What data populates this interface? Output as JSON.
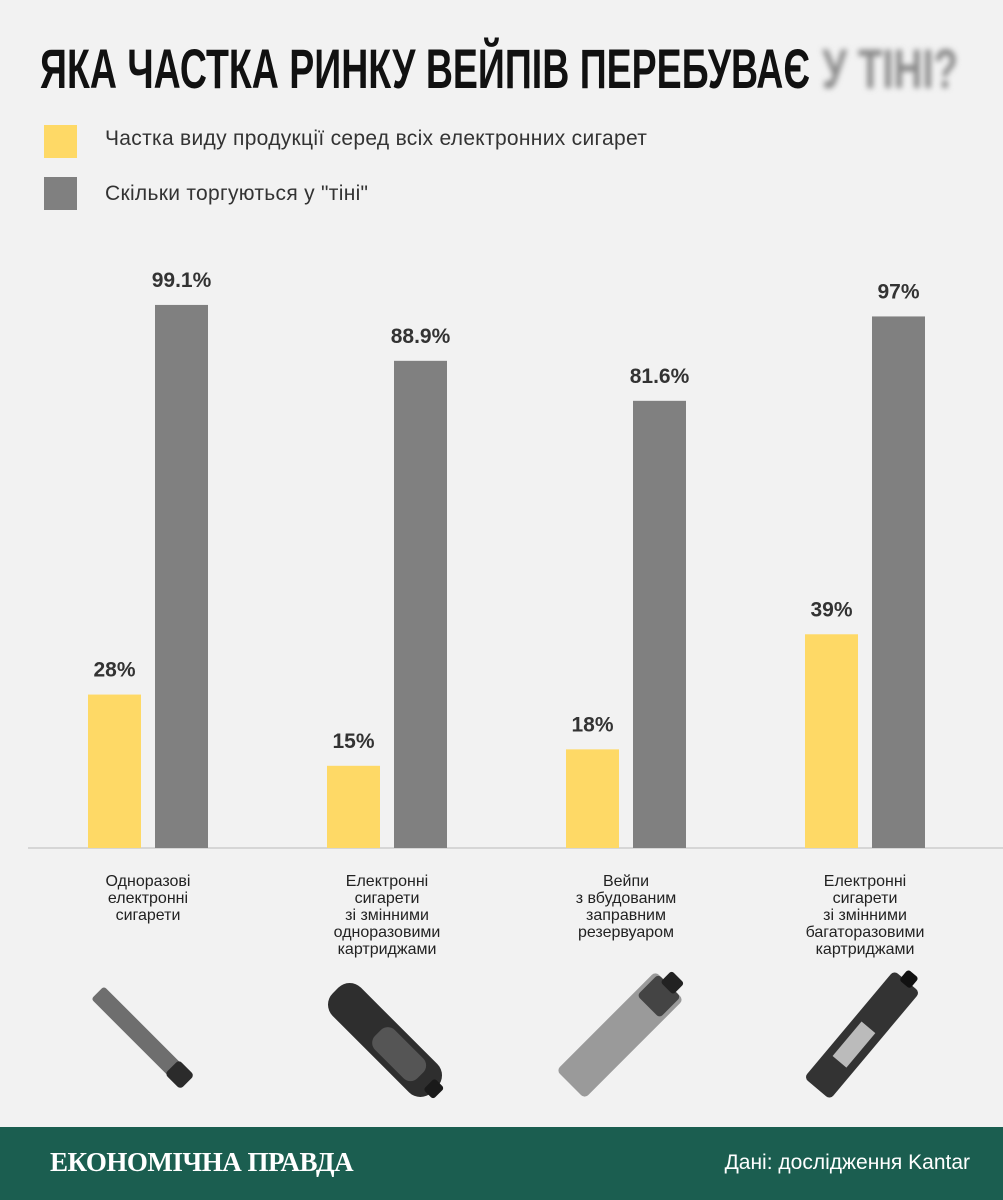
{
  "chart_data": {
    "type": "bar",
    "title": "ЯКА ЧАСТКА РИНКУ ВЕЙПІВ ПЕРЕБУВАЄ",
    "title_blurred": "У ТІНІ?",
    "categories": [
      "Одноразові\nелектронні\nсигарети",
      "Електронні\nсигарети\nзі змінними\nодноразовими\nкартриджами",
      "Вейпи\nз вбудованим\nзаправним\nрезервуаром",
      "Електронні\nсигарети\nзі змінними\nбагаторазовими\nкартриджами"
    ],
    "series": [
      {
        "name": "Частка виду продукції серед всіх електронних сигарет",
        "color": "#fed966",
        "values": [
          28,
          15,
          18,
          39
        ],
        "value_labels": [
          "28%",
          "15%",
          "18%",
          "39%"
        ]
      },
      {
        "name": "Скільки торгуються у \"тіні\"",
        "color": "#808080",
        "values": [
          99.1,
          88.9,
          81.6,
          97
        ],
        "value_labels": [
          "99.1%",
          "88.9%",
          "81.6%",
          "97%"
        ]
      }
    ],
    "ylim": [
      0,
      100
    ],
    "legend": "top-left"
  },
  "footer": {
    "brand": "ЕКОНОМІЧНА ПРАВДА",
    "source": "Дані: дослідження Kantar"
  }
}
